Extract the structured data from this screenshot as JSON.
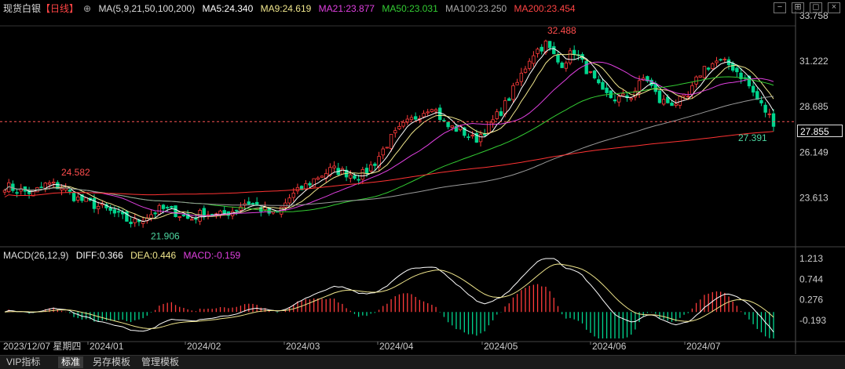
{
  "header": {
    "instrument": "现货白银",
    "period": "【日线】",
    "ma_params": "MA(5,9,21,50,100,200)",
    "ma5": "MA5:24.340",
    "ma9": "MA9:24.619",
    "ma21": "MA21:23.877",
    "ma50": "MA50:23.031",
    "ma100": "MA100:23.250",
    "ma200": "MA200:23.454"
  },
  "macd_header": {
    "params": "MACD(26,12,9)",
    "diff": "DIFF:0.366",
    "dea": "DEA:0.446",
    "macd": "MACD:-0.159"
  },
  "current_price": "27.855",
  "bottom": {
    "date_label": "2023/12/07 星期四",
    "tabs": [
      "VIP指标",
      "标准",
      "另存模板",
      "管理模板"
    ],
    "active_tab": "标准"
  },
  "colors": {
    "up": "#ff3b3b",
    "down": "#00d68f",
    "ma5": "#ffffff",
    "ma9": "#f0e68c",
    "ma21": "#e040e0",
    "ma50": "#33cc33",
    "ma100": "#9a9a9a",
    "ma200": "#ff3333",
    "diff": "#ffffff",
    "dea": "#f0e68c"
  },
  "chart_data": [
    {
      "type": "candlestick",
      "name": "现货白银 日线",
      "x_ticks": [
        "2024/01",
        "2024/02",
        "2024/03",
        "2024/04",
        "2024/05",
        "2024/06",
        "2024/07"
      ],
      "y_ticks": [
        "33.758",
        "31.222",
        "28.685",
        "26.149",
        "23.613"
      ],
      "ylim": [
        21.1,
        33.758
      ],
      "annotations": [
        {
          "label": "24.582",
          "value": 24.582,
          "kind": "high"
        },
        {
          "label": "21.906",
          "value": 21.906,
          "kind": "low"
        },
        {
          "label": "32.488",
          "value": 32.488,
          "kind": "high"
        },
        {
          "label": "27.391",
          "value": 27.391,
          "kind": "low"
        }
      ],
      "anchors": [
        24.3,
        24.0,
        23.9,
        24.4,
        24.2,
        23.6,
        23.3,
        23.0,
        22.6,
        22.2,
        22.6,
        23.0,
        22.8,
        22.4,
        22.8,
        22.6,
        22.9,
        23.4,
        23.0,
        22.6,
        23.6,
        24.2,
        24.8,
        25.2,
        25.0,
        24.8,
        25.6,
        26.8,
        27.6,
        28.2,
        28.8,
        27.6,
        27.4,
        26.8,
        27.6,
        28.6,
        30.0,
        31.6,
        32.2,
        31.0,
        31.8,
        30.6,
        29.4,
        29.1,
        29.3,
        30.4,
        29.0,
        28.9,
        29.2,
        30.8,
        31.2,
        31.0,
        30.2,
        28.9,
        27.85
      ],
      "macd_y_ticks": [
        "1.213",
        "0.744",
        "0.276",
        "-0.193"
      ],
      "macd_ylim": [
        -0.6,
        1.213
      ]
    }
  ]
}
